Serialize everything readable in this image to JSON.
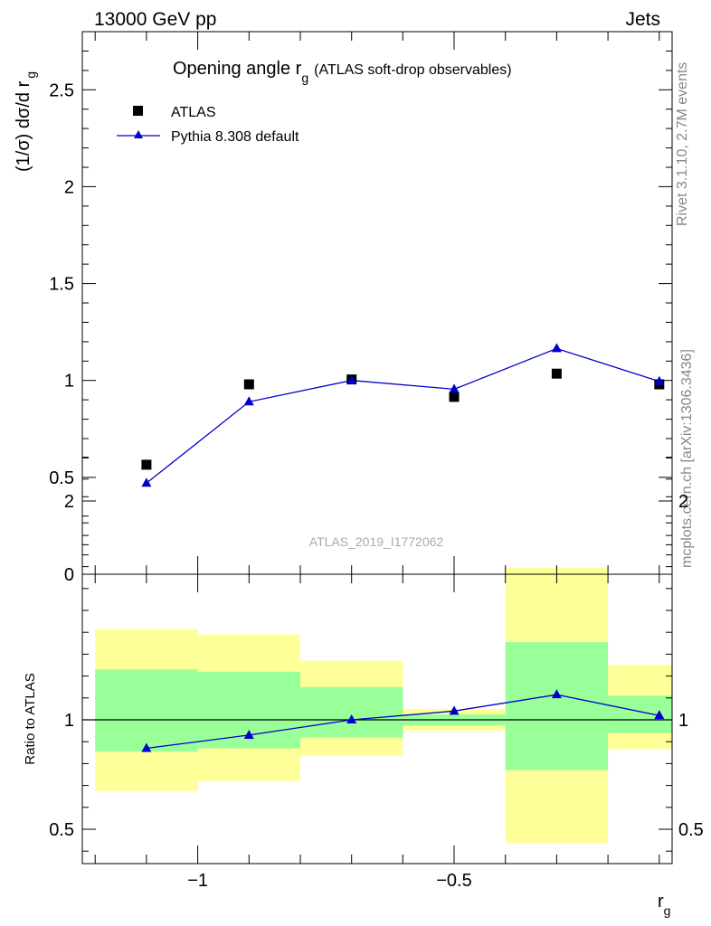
{
  "header": {
    "left": "13000 GeV pp",
    "right": "Jets"
  },
  "side_text": {
    "rivet": "Rivet 3.1.10,  2.7M events",
    "mcplots": "mcplots.cern.ch [arXiv:1306.3436]"
  },
  "chart_data": [
    {
      "type": "scatter",
      "title": "Opening angle r",
      "title_sub": "g",
      "title_suffix": "(ATLAS soft-drop observables)",
      "ylabel": "(1/σ) dσ/d r",
      "ylabel_sub": "g",
      "xlabel": "r",
      "xlabel_sub": "g",
      "watermark": "ATLAS_2019_I1772062",
      "xlim": [
        -1.225,
        -0.075
      ],
      "ylim": [
        0,
        2.8
      ],
      "yticks": [
        0,
        0.5,
        1,
        1.5,
        2,
        2.5
      ],
      "ytick_labels": [
        "0",
        "0.5",
        "1",
        "1.5",
        "2",
        "2.5"
      ],
      "legend": {
        "position": "top-left",
        "entries": [
          "ATLAS",
          "Pythia 8.308 default"
        ]
      },
      "series": [
        {
          "name": "ATLAS",
          "marker": "square",
          "color": "#000000",
          "x": [
            -1.1,
            -0.9,
            -0.7,
            -0.5,
            -0.3,
            -0.1
          ],
          "y": [
            0.565,
            0.98,
            1.005,
            0.915,
            1.035,
            0.98
          ]
        },
        {
          "name": "Pythia 8.308 default",
          "marker": "triangle",
          "color": "#0000cc",
          "x": [
            -1.1,
            -0.9,
            -0.7,
            -0.5,
            -0.3,
            -0.1
          ],
          "y": [
            0.47,
            0.89,
            1.0,
            0.955,
            1.165,
            0.995
          ]
        }
      ]
    },
    {
      "type": "line",
      "ylabel": "Ratio to ATLAS",
      "xlim": [
        -1.225,
        -0.075
      ],
      "ylim": [
        0.35,
        2.25
      ],
      "yticks": [
        0.5,
        1,
        2
      ],
      "ytick_labels": [
        "0.5",
        "1",
        "2"
      ],
      "xticks": [
        -1,
        -0.5
      ],
      "xtick_labels": [
        "−1",
        "−0.5"
      ],
      "reference_line": 1,
      "bands": {
        "bin_edges": [
          -1.2,
          -1.0,
          -0.8,
          -0.6,
          -0.4,
          -0.2,
          -0.075
        ],
        "outer": {
          "color": "#ffff99",
          "low": [
            0.675,
            0.72,
            0.835,
            0.95,
            0.435,
            0.865
          ],
          "high": [
            1.415,
            1.39,
            1.27,
            1.05,
            1.695,
            1.25
          ]
        },
        "inner": {
          "color": "#99ff99",
          "low": [
            0.855,
            0.87,
            0.92,
            0.975,
            0.77,
            0.94
          ],
          "high": [
            1.23,
            1.22,
            1.15,
            1.025,
            1.355,
            1.11
          ]
        }
      },
      "series": [
        {
          "name": "Pythia 8.308 default",
          "marker": "triangle",
          "color": "#0000cc",
          "x": [
            -1.1,
            -0.9,
            -0.7,
            -0.5,
            -0.3,
            -0.1
          ],
          "y": [
            0.87,
            0.93,
            1.0,
            1.04,
            1.115,
            1.02
          ]
        }
      ]
    }
  ]
}
